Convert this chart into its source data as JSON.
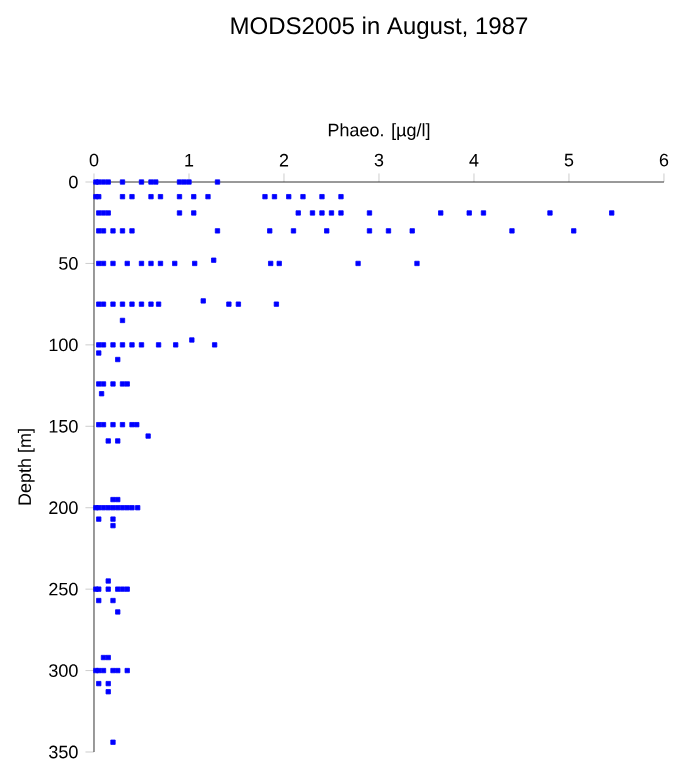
{
  "chart_data": {
    "type": "scatter",
    "title": "MODS2005 in August, 1987",
    "xlabel": "Phaeo. [µg/l]",
    "ylabel": "Depth [m]",
    "xlim": [
      0,
      6
    ],
    "ylim": [
      350,
      0
    ],
    "xticks": [
      0,
      1,
      2,
      3,
      4,
      5,
      6
    ],
    "yticks": [
      0,
      50,
      100,
      150,
      200,
      250,
      300,
      350
    ],
    "marker": "square",
    "color": "#0000ff",
    "x": [
      0.02,
      0.05,
      0.1,
      0.15,
      0.3,
      0.5,
      0.6,
      0.65,
      0.9,
      0.95,
      1.0,
      1.3,
      0.02,
      0.05,
      0.3,
      0.4,
      0.6,
      0.7,
      0.9,
      1.05,
      1.2,
      1.8,
      1.9,
      2.05,
      2.2,
      2.4,
      2.6,
      0.05,
      0.1,
      0.15,
      0.9,
      1.05,
      2.15,
      2.3,
      2.4,
      2.5,
      2.6,
      2.9,
      3.65,
      3.95,
      4.1,
      4.8,
      5.45,
      0.05,
      0.1,
      0.2,
      0.3,
      0.4,
      1.3,
      1.85,
      2.1,
      2.45,
      2.9,
      3.1,
      3.35,
      4.4,
      5.05,
      0.05,
      0.1,
      0.2,
      0.35,
      0.5,
      0.6,
      0.7,
      0.85,
      1.06,
      1.26,
      1.86,
      1.95,
      2.78,
      3.4,
      0.05,
      0.1,
      0.2,
      0.3,
      0.4,
      0.5,
      0.6,
      0.68,
      1.15,
      1.42,
      1.52,
      1.92,
      0.3,
      0.05,
      0.1,
      0.2,
      0.3,
      0.4,
      0.5,
      0.68,
      0.86,
      1.03,
      1.27,
      0.05,
      0.25,
      0.05,
      0.1,
      0.2,
      0.3,
      0.35,
      0.08,
      0.05,
      0.1,
      0.2,
      0.3,
      0.4,
      0.45,
      0.57,
      0.15,
      0.25,
      0.02,
      0.05,
      0.1,
      0.15,
      0.2,
      0.25,
      0.3,
      0.35,
      0.4,
      0.46,
      0.2,
      0.25,
      0.05,
      0.2,
      0.2,
      0.02,
      0.05,
      0.15,
      0.25,
      0.3,
      0.35,
      0.15,
      0.05,
      0.2,
      0.25,
      0.02,
      0.05,
      0.1,
      0.2,
      0.25,
      0.35,
      0.1,
      0.15,
      0.05,
      0.15,
      0.15,
      0.2
    ],
    "values": [
      0,
      0,
      0,
      0,
      0,
      0,
      0,
      0,
      0,
      0,
      0,
      0,
      9,
      9,
      9,
      9,
      9,
      9,
      9,
      9,
      9,
      9,
      9,
      9,
      9,
      9,
      9,
      19,
      19,
      19,
      19,
      19,
      19,
      19,
      19,
      19,
      19,
      19,
      19,
      19,
      19,
      19,
      19,
      30,
      30,
      30,
      30,
      30,
      30,
      30,
      30,
      30,
      30,
      30,
      30,
      30,
      30,
      50,
      50,
      50,
      50,
      50,
      50,
      50,
      50,
      50,
      48,
      50,
      50,
      50,
      50,
      75,
      75,
      75,
      75,
      75,
      75,
      75,
      75,
      73,
      75,
      75,
      75,
      85,
      100,
      100,
      100,
      100,
      100,
      100,
      100,
      100,
      97,
      100,
      105,
      109,
      124,
      124,
      124,
      124,
      124,
      130,
      149,
      149,
      149,
      149,
      149,
      149,
      156,
      159,
      159,
      200,
      200,
      200,
      200,
      200,
      200,
      200,
      200,
      200,
      200,
      195,
      195,
      207,
      207,
      211,
      250,
      250,
      250,
      250,
      250,
      250,
      245,
      257,
      257,
      264,
      300,
      300,
      300,
      300,
      300,
      300,
      292,
      292,
      308,
      308,
      313,
      344
    ]
  }
}
